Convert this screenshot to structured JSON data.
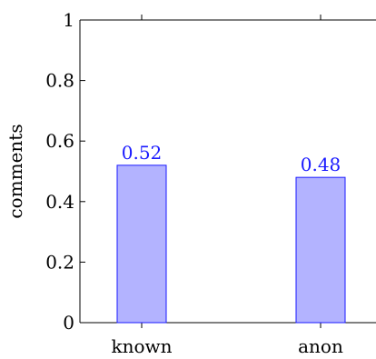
{
  "chart_data": {
    "type": "bar",
    "categories": [
      "known",
      "anon"
    ],
    "values": [
      0.52,
      0.48
    ],
    "data_labels": [
      "0.52",
      "0.48"
    ],
    "ylabel": "comments",
    "ylim": [
      0,
      1
    ],
    "yticks": [
      0,
      0.2,
      0.4,
      0.6,
      0.8,
      1
    ],
    "ytick_labels": [
      "0",
      "0.2",
      "0.4",
      "0.6",
      "0.8",
      "1"
    ],
    "grid": false,
    "colors": {
      "bar_fill": "#b3b3ff",
      "bar_stroke": "#1a1aff",
      "data_label": "#1a1aff",
      "axis": "#000000"
    }
  }
}
